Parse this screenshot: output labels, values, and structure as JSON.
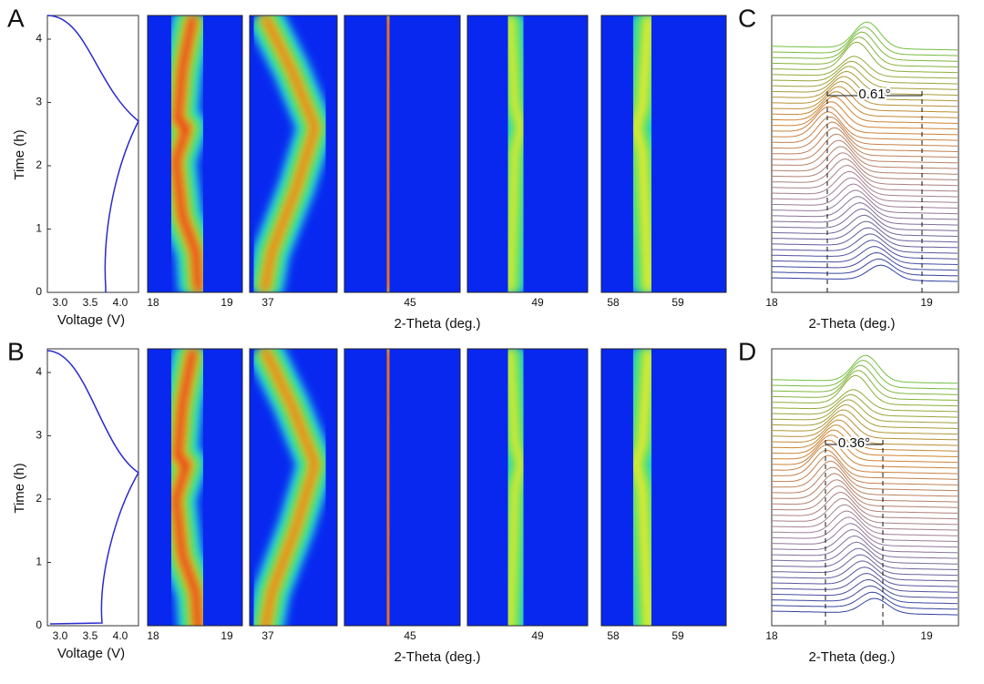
{
  "panels": {
    "A": "A",
    "B": "B",
    "C": "C",
    "D": "D"
  },
  "voltage_axis": {
    "y_label": "Time (h)",
    "x_label": "Voltage (V)",
    "yticks": [
      "0",
      "1",
      "2",
      "3",
      "4"
    ],
    "xticks": [
      "3.0",
      "3.5",
      "4.0"
    ]
  },
  "heatmap_ticks": [
    [
      "18",
      "19"
    ],
    [
      "37"
    ],
    [
      "45"
    ],
    [
      "49"
    ],
    [
      "58",
      "59"
    ]
  ],
  "heatmap_x_label": "2-Theta (deg.)",
  "waterfall": {
    "x_label": "2-Theta (deg.)",
    "xticks": [
      "18",
      "19"
    ]
  },
  "annotations": {
    "C": "0.61°",
    "D": "0.36°"
  }
}
